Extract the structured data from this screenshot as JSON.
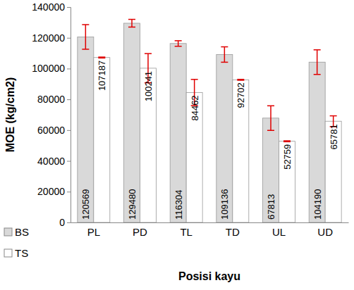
{
  "chart_data": {
    "type": "bar",
    "x_label": "Posisi kayu",
    "y_label": "MOE (kg/cm2)",
    "categories": [
      "PL",
      "PD",
      "TL",
      "TD",
      "UL",
      "UD"
    ],
    "series": [
      {
        "name": "BS",
        "color": "#d9d9d9",
        "values": [
          120569,
          129480,
          116304,
          109136,
          67813,
          104190
        ],
        "errors": [
          8000,
          2500,
          1800,
          5000,
          8000,
          8000
        ]
      },
      {
        "name": "TS",
        "color": "#ffffff",
        "values": [
          107187,
          100241,
          84462,
          92702,
          52759,
          65781
        ],
        "errors": [
          300,
          9500,
          8500,
          300,
          300,
          3500
        ]
      }
    ],
    "ylim": [
      0,
      140000
    ],
    "yticks": [
      0,
      20000,
      40000,
      60000,
      80000,
      100000,
      120000,
      140000
    ],
    "grid": false,
    "legend": "bottom-left",
    "data_labels": true
  }
}
